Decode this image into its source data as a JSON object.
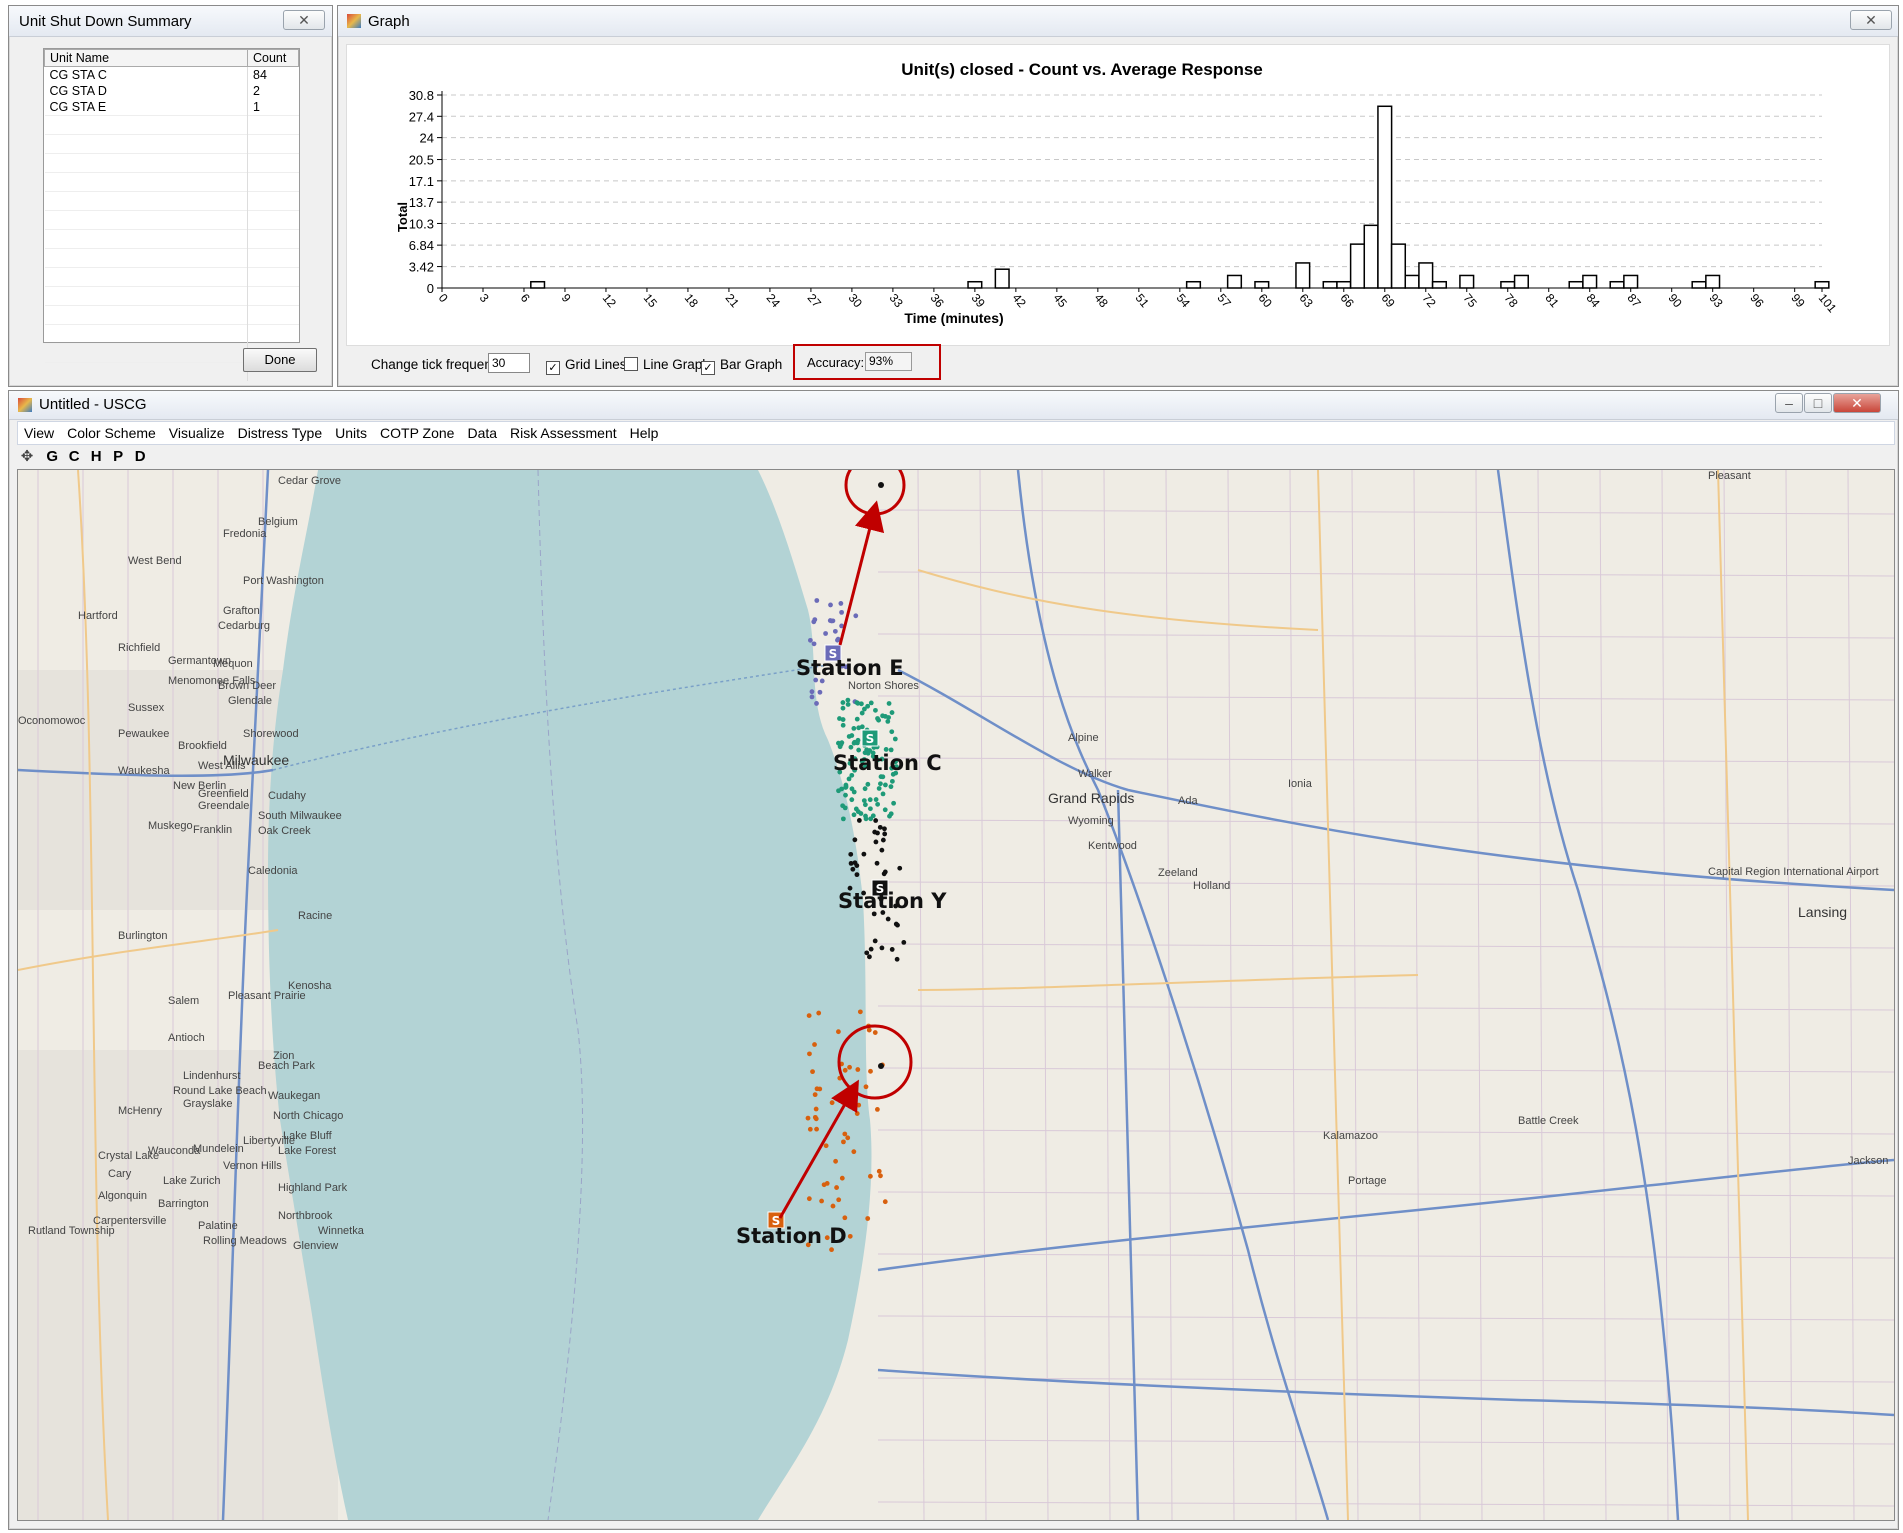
{
  "summary_window": {
    "title": "Unit Shut Down Summary",
    "close_glyph": "✕",
    "columns": [
      "Unit Name",
      "Count"
    ],
    "rows": [
      {
        "unit": "CG STA C",
        "count": "84"
      },
      {
        "unit": "CG STA D",
        "count": "2"
      },
      {
        "unit": "CG STA E",
        "count": "1"
      }
    ],
    "done_label": "Done"
  },
  "graph_window": {
    "title": "Graph",
    "close_glyph": "✕",
    "tick_frequency_label": "Change tick frequency:",
    "tick_frequency_value": "30",
    "grid_lines_label": "Grid Lines",
    "grid_lines_checked": true,
    "line_graph_label": "Line Graph",
    "line_graph_checked": false,
    "bar_graph_label": "Bar Graph",
    "bar_graph_checked": true,
    "accuracy_label": "Accuracy:",
    "accuracy_value": "93%",
    "highlight_color": "#c00000"
  },
  "chart_data": {
    "type": "bar",
    "title": "Unit(s) closed - Count vs. Average Response",
    "xlabel": "Time (minutes)",
    "ylabel": "Total",
    "y_ticks": [
      "0",
      "3.42",
      "6.84",
      "10.3",
      "13.7",
      "17.1",
      "20.5",
      "24",
      "27.4",
      "30.8"
    ],
    "ylim": [
      0,
      30.8
    ],
    "x_ticks": [
      "0",
      "3",
      "6",
      "9",
      "12",
      "15",
      "18",
      "21",
      "24",
      "27",
      "30",
      "33",
      "36",
      "39",
      "42",
      "45",
      "48",
      "51",
      "54",
      "57",
      "60",
      "63",
      "66",
      "69",
      "72",
      "75",
      "78",
      "81",
      "84",
      "87",
      "90",
      "93",
      "96",
      "99",
      "101"
    ],
    "xlim": [
      0,
      101
    ],
    "grid": true,
    "bar_width_minutes": 1,
    "x": [
      7,
      39,
      41,
      55,
      58,
      60,
      63,
      65,
      66,
      67,
      68,
      69,
      70,
      71,
      72,
      73,
      75,
      78,
      79,
      83,
      84,
      86,
      87,
      92,
      93,
      101
    ],
    "values": [
      1,
      1,
      3,
      1,
      2,
      1,
      4,
      1,
      1,
      7,
      10,
      29,
      7,
      2,
      4,
      1,
      2,
      1,
      2,
      1,
      2,
      1,
      2,
      1,
      2,
      1
    ]
  },
  "main_window": {
    "title": "Untitled - USCG",
    "menu": [
      "View",
      "Color Scheme",
      "Visualize",
      "Distress Type",
      "Units",
      "COTP Zone",
      "Data",
      "Risk Assessment",
      "Help"
    ],
    "toolbar": [
      "G",
      "C",
      "H",
      "P",
      "D"
    ],
    "move_icon": "✥",
    "controls": [
      "–",
      "□",
      "✕"
    ]
  },
  "map": {
    "lake_color": "#b3d3d5",
    "land_color": "#efece4",
    "stations": [
      {
        "label": "Station E",
        "marker": "S",
        "color": "#6b6bb8"
      },
      {
        "label": "Station C",
        "marker": "S",
        "color": "#1e9a78"
      },
      {
        "label": "Station Y",
        "marker": "S",
        "color": "#111111"
      },
      {
        "label": "Station D",
        "marker": "S",
        "color": "#d8600e"
      }
    ],
    "annotation_color": "#c00000",
    "cities": [
      "Milwaukee",
      "Grand Rapids",
      "Lansing",
      "Racine",
      "Kenosha",
      "Waukesha",
      "West Allis",
      "Cudahy",
      "South Milwaukee",
      "Oak Creek",
      "Greenfield",
      "Greendale",
      "Franklin",
      "Muskego",
      "New Berlin",
      "Brookfield",
      "Pewaukee",
      "Oconomowoc",
      "Sussex",
      "Menomonee Falls",
      "Germantown",
      "Richfield",
      "Hartford",
      "West Bend",
      "Fredonia",
      "Port Washington",
      "Belgium",
      "Cedar Grove",
      "Grafton",
      "Cedarburg",
      "Mequon",
      "Brown Deer",
      "Glendale",
      "Shorewood",
      "Caledonia",
      "Burlington",
      "Salem",
      "Pleasant Prairie",
      "Antioch",
      "Zion",
      "Beach Park",
      "Waukegan",
      "North Chicago",
      "Lake Bluff",
      "Lake Forest",
      "Libertyville",
      "Mundelein",
      "Vernon Hills",
      "Lindenhurst",
      "Round Lake Beach",
      "Grayslake",
      "McHenry",
      "Wauconda",
      "Crystal Lake",
      "Cary",
      "Lake Zurich",
      "Algonquin",
      "Barrington",
      "Carpentersville",
      "Rutland Township",
      "Palatine",
      "Rolling Meadows",
      "Northbrook",
      "Winnetka",
      "Glenview",
      "Highland Park",
      "Alpine",
      "Walker",
      "Wyoming",
      "Kentwood",
      "Ada",
      "Ionia",
      "Zeeland",
      "Holland",
      "Kalamazoo",
      "Portage",
      "Battle Creek",
      "Jackson",
      "Pleasant",
      "Capital Region International Airport",
      "Norton Shores"
    ]
  }
}
